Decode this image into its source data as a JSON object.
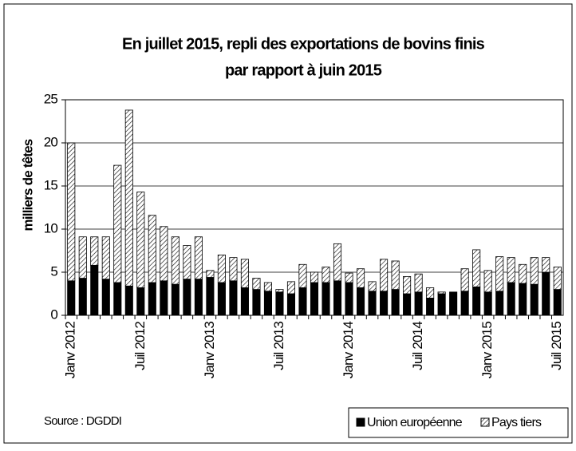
{
  "chart_data": {
    "type": "stacked_bar",
    "title": [
      "En juillet 2015, repli des exportations de bovins finis",
      "par rapport à juin 2015"
    ],
    "y_label": "milliers de têtes",
    "source": "Source : DGDDI",
    "categories": [
      "Janv 2012",
      null,
      null,
      null,
      null,
      null,
      "Juil 2012",
      null,
      null,
      null,
      null,
      null,
      "Janv 2013",
      null,
      null,
      null,
      null,
      null,
      "Juil 2013",
      null,
      null,
      null,
      null,
      null,
      "Janv 2014",
      null,
      null,
      null,
      null,
      null,
      "Juil 2014",
      null,
      null,
      null,
      null,
      null,
      "Janv 2015",
      null,
      null,
      null,
      null,
      null,
      "Juil 2015"
    ],
    "series": [
      {
        "name": "Union européenne",
        "color": "#000000",
        "values": [
          4.0,
          4.3,
          5.8,
          4.2,
          3.8,
          3.4,
          3.2,
          3.8,
          4.0,
          3.6,
          4.2,
          4.2,
          4.4,
          3.8,
          4.0,
          3.2,
          3.0,
          2.8,
          2.7,
          2.5,
          3.2,
          3.8,
          3.8,
          4.0,
          3.8,
          3.2,
          2.8,
          2.8,
          3.0,
          2.5,
          2.7,
          2.0,
          2.5,
          2.7,
          2.8,
          3.3,
          2.7,
          2.8,
          3.8,
          3.7,
          3.6,
          5.0,
          3.0
        ]
      },
      {
        "name": "Pays tiers",
        "color": "#ffffff",
        "pattern": "hatch",
        "values": [
          16.0,
          4.8,
          3.3,
          4.9,
          13.6,
          20.4,
          11.1,
          7.8,
          6.3,
          5.5,
          3.9,
          4.9,
          0.8,
          3.2,
          2.7,
          3.3,
          1.3,
          1.0,
          0.3,
          1.4,
          2.7,
          1.2,
          1.8,
          4.3,
          1.1,
          2.2,
          1.1,
          3.7,
          3.3,
          2.0,
          2.1,
          1.2,
          0.2,
          0,
          2.6,
          4.3,
          2.5,
          4.0,
          2.9,
          2.2,
          3.1,
          1.7,
          2.6
        ]
      }
    ],
    "ylim": [
      0,
      25
    ],
    "yticks": [
      0,
      5,
      10,
      15,
      20,
      25
    ],
    "grid": true,
    "legend": "bottom-right"
  }
}
